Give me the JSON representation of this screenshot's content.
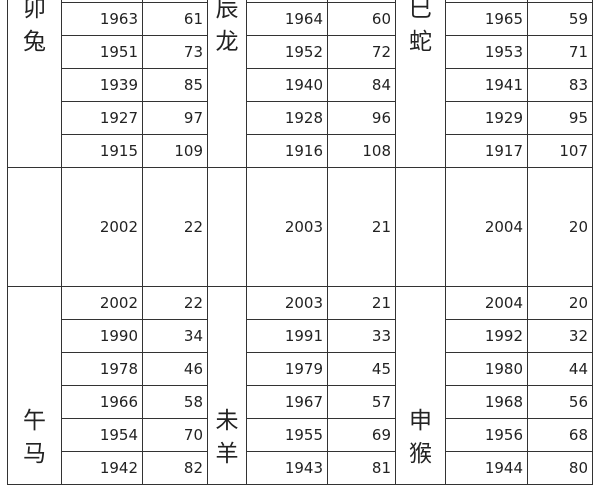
{
  "groups": [
    {
      "zodiac": [
        {
          "chars": [
            "卯",
            "兔"
          ]
        },
        {
          "chars": [
            "辰",
            "龙"
          ]
        },
        {
          "chars": [
            "巳",
            "蛇"
          ]
        }
      ],
      "rows": [
        [
          [
            "",
            ""
          ],
          [
            "",
            ""
          ],
          [
            "",
            ""
          ]
        ],
        [
          [
            "1963",
            "61"
          ],
          [
            "1964",
            "60"
          ],
          [
            "1965",
            "59"
          ]
        ],
        [
          [
            "1951",
            "73"
          ],
          [
            "1952",
            "72"
          ],
          [
            "1953",
            "71"
          ]
        ],
        [
          [
            "1939",
            "85"
          ],
          [
            "1940",
            "84"
          ],
          [
            "1941",
            "83"
          ]
        ],
        [
          [
            "1927",
            "97"
          ],
          [
            "1928",
            "96"
          ],
          [
            "1929",
            "95"
          ]
        ],
        [
          [
            "1915",
            "109"
          ],
          [
            "1916",
            "108"
          ],
          [
            "1917",
            "107"
          ]
        ]
      ]
    },
    {
      "zodiac": null,
      "rows": [
        [
          [
            "2002",
            "22"
          ],
          [
            "2003",
            "21"
          ],
          [
            "2004",
            "20"
          ]
        ]
      ]
    },
    {
      "zodiac": [
        {
          "chars": [
            "午",
            "马"
          ]
        },
        {
          "chars": [
            "未",
            "羊"
          ]
        },
        {
          "chars": [
            "申",
            "猴"
          ]
        }
      ],
      "rows": [
        [
          [
            "2002",
            "22"
          ],
          [
            "2003",
            "21"
          ],
          [
            "2004",
            "20"
          ]
        ],
        [
          [
            "1990",
            "34"
          ],
          [
            "1991",
            "33"
          ],
          [
            "1992",
            "32"
          ]
        ],
        [
          [
            "1978",
            "46"
          ],
          [
            "1979",
            "45"
          ],
          [
            "1980",
            "44"
          ]
        ],
        [
          [
            "1966",
            "58"
          ],
          [
            "1967",
            "57"
          ],
          [
            "1968",
            "56"
          ]
        ],
        [
          [
            "1954",
            "70"
          ],
          [
            "1955",
            "69"
          ],
          [
            "1956",
            "68"
          ]
        ],
        [
          [
            "1942",
            "82"
          ],
          [
            "1943",
            "81"
          ],
          [
            "1944",
            "80"
          ]
        ]
      ]
    }
  ]
}
